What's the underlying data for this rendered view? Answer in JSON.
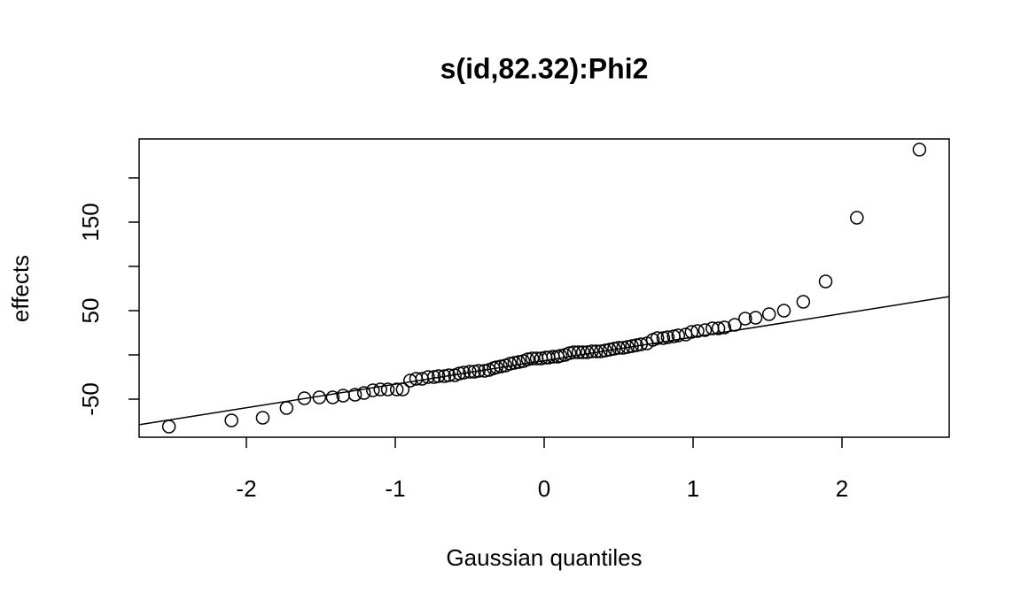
{
  "chart_data": {
    "type": "scatter",
    "title": "s(id,82.32):Phi2",
    "x_label": "Gaussian quantiles",
    "y_label": "effects",
    "xlim": [
      -2.72,
      2.72
    ],
    "ylim": [
      -93,
      244
    ],
    "xticks": [
      -2,
      -1,
      0,
      1,
      2
    ],
    "yticks": [
      -50,
      50,
      150
    ],
    "y_unlabeled_ticks": [
      0,
      100,
      200
    ],
    "color": "#000000",
    "reference_line": {
      "intercept": -6.5,
      "slope": 26.6
    },
    "x": [
      -2.52,
      -2.1,
      -1.89,
      -1.73,
      -1.61,
      -1.51,
      -1.42,
      -1.35,
      -1.27,
      -1.21,
      -1.15,
      -1.1,
      -1.05,
      -0.99,
      -0.95,
      -0.9,
      -0.86,
      -0.82,
      -0.78,
      -0.74,
      -0.71,
      -0.67,
      -0.64,
      -0.6,
      -0.57,
      -0.54,
      -0.5,
      -0.47,
      -0.44,
      -0.4,
      -0.37,
      -0.34,
      -0.32,
      -0.29,
      -0.26,
      -0.23,
      -0.2,
      -0.17,
      -0.14,
      -0.11,
      -0.08,
      -0.05,
      -0.02,
      0.01,
      0.03,
      0.06,
      0.09,
      0.11,
      0.14,
      0.17,
      0.2,
      0.23,
      0.26,
      0.29,
      0.32,
      0.35,
      0.38,
      0.41,
      0.44,
      0.47,
      0.5,
      0.53,
      0.56,
      0.59,
      0.62,
      0.65,
      0.69,
      0.73,
      0.76,
      0.8,
      0.83,
      0.87,
      0.9,
      0.95,
      0.99,
      1.03,
      1.08,
      1.13,
      1.17,
      1.21,
      1.28,
      1.35,
      1.42,
      1.51,
      1.61,
      1.74,
      1.89,
      2.1,
      2.52
    ],
    "y": [
      -81,
      -74,
      -71,
      -60,
      -49,
      -48,
      -48,
      -46,
      -45,
      -43,
      -40,
      -39,
      -39,
      -39,
      -39,
      -29,
      -27,
      -27,
      -25,
      -25,
      -24,
      -24,
      -23,
      -23,
      -21,
      -20,
      -19,
      -19,
      -18,
      -18,
      -17,
      -15,
      -14,
      -13,
      -12,
      -10,
      -9,
      -8,
      -7,
      -5,
      -4,
      -4,
      -4,
      -3,
      -3,
      -2,
      -2,
      -1,
      0,
      2,
      3,
      3,
      3,
      3,
      4,
      4,
      4,
      5,
      6,
      7,
      8,
      8,
      9,
      10,
      11,
      12,
      13,
      17,
      19,
      19,
      20,
      21,
      22,
      23,
      26,
      27,
      28,
      30,
      30,
      31,
      34,
      41,
      42,
      46,
      50,
      60,
      83,
      155,
      232
    ]
  }
}
